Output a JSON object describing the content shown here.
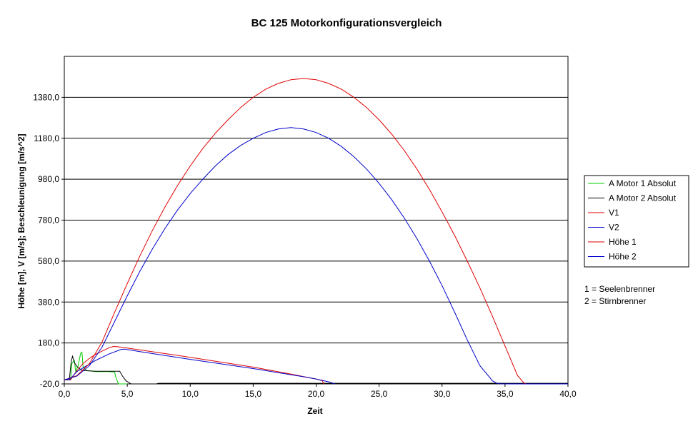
{
  "chart_data": {
    "type": "line",
    "title": "BC 125 Motorkonfigurationsvergleich",
    "xlabel": "Zeit",
    "ylabel": "Höhe [m], V [m/s]; Beschleunigung [m/s^2]",
    "xlim": [
      0,
      40
    ],
    "ylim": [
      -20,
      1580
    ],
    "x_ticks": [
      "0,0",
      "5,0",
      "10,0",
      "15,0",
      "20,0",
      "25,0",
      "30,0",
      "35,0",
      "40,0"
    ],
    "x_tick_values": [
      0,
      5,
      10,
      15,
      20,
      25,
      30,
      35,
      40
    ],
    "y_ticks": [
      "-20,0",
      "180,0",
      "380,0",
      "580,0",
      "780,0",
      "980,0",
      "1180,0",
      "1380,0"
    ],
    "y_tick_values": [
      -20,
      180,
      380,
      580,
      780,
      980,
      1180,
      1380
    ],
    "grid": "horizontal",
    "legend_position": "right",
    "series": [
      {
        "name": "A Motor 1 Absolut",
        "color": "#00cc00",
        "points": [
          [
            0,
            0
          ],
          [
            0.5,
            0
          ],
          [
            0.6,
            80
          ],
          [
            0.8,
            95
          ],
          [
            0.9,
            40
          ],
          [
            1.1,
            70
          ],
          [
            1.3,
            130
          ],
          [
            1.4,
            135
          ],
          [
            1.5,
            60
          ],
          [
            1.8,
            45
          ],
          [
            2.5,
            40
          ],
          [
            3.5,
            40
          ],
          [
            4.0,
            38
          ],
          [
            4.1,
            10
          ],
          [
            4.3,
            -20
          ],
          [
            5,
            -20
          ]
        ]
      },
      {
        "name": "A Motor 2 Absolut",
        "color": "#000000",
        "points": [
          [
            0,
            0
          ],
          [
            0.4,
            0
          ],
          [
            0.55,
            90
          ],
          [
            0.65,
            115
          ],
          [
            0.8,
            85
          ],
          [
            1.0,
            65
          ],
          [
            1.3,
            50
          ],
          [
            1.6,
            45
          ],
          [
            2.5,
            42
          ],
          [
            3.5,
            42
          ],
          [
            4.4,
            42
          ],
          [
            4.6,
            20
          ],
          [
            4.9,
            -5
          ],
          [
            5.3,
            -20
          ],
          [
            6,
            -20
          ],
          [
            7.3,
            -20
          ],
          [
            7.5,
            -17
          ],
          [
            40,
            -17
          ]
        ]
      },
      {
        "name": "V1",
        "color": "#e00000",
        "points": [
          [
            0,
            0
          ],
          [
            0.5,
            0
          ],
          [
            1.0,
            45
          ],
          [
            1.5,
            80
          ],
          [
            2.0,
            105
          ],
          [
            2.5,
            125
          ],
          [
            3.0,
            140
          ],
          [
            3.5,
            155
          ],
          [
            3.9,
            163
          ],
          [
            4.2,
            162
          ],
          [
            5,
            155
          ],
          [
            10,
            110
          ],
          [
            15,
            62
          ],
          [
            18,
            28
          ],
          [
            19,
            16
          ],
          [
            20,
            4
          ],
          [
            20.5,
            -5
          ],
          [
            20.6,
            -20
          ]
        ]
      },
      {
        "name": "V2",
        "color": "#0000cc",
        "points": [
          [
            0,
            0
          ],
          [
            0.4,
            0
          ],
          [
            1.0,
            40
          ],
          [
            1.8,
            70
          ],
          [
            2.5,
            95
          ],
          [
            3.5,
            125
          ],
          [
            4.5,
            148
          ],
          [
            4.8,
            150
          ],
          [
            6,
            138
          ],
          [
            10,
            100
          ],
          [
            15,
            55
          ],
          [
            18,
            25
          ],
          [
            19,
            15
          ],
          [
            20,
            4
          ],
          [
            20.5,
            -3
          ],
          [
            21,
            -10
          ],
          [
            21.5,
            -20
          ]
        ]
      },
      {
        "name": "Höhe 1",
        "color": "#e00000",
        "points": [
          [
            0,
            0
          ],
          [
            1,
            20
          ],
          [
            2,
            80
          ],
          [
            3,
            185
          ],
          [
            4,
            330
          ],
          [
            5,
            470
          ],
          [
            6,
            605
          ],
          [
            7,
            730
          ],
          [
            8,
            845
          ],
          [
            9,
            950
          ],
          [
            10,
            1045
          ],
          [
            11,
            1130
          ],
          [
            12,
            1205
          ],
          [
            13,
            1270
          ],
          [
            14,
            1330
          ],
          [
            15,
            1380
          ],
          [
            16,
            1420
          ],
          [
            17,
            1448
          ],
          [
            18,
            1466
          ],
          [
            19,
            1472
          ],
          [
            20,
            1466
          ],
          [
            21,
            1448
          ],
          [
            22,
            1420
          ],
          [
            23,
            1380
          ],
          [
            24,
            1330
          ],
          [
            25,
            1270
          ],
          [
            26,
            1200
          ],
          [
            27,
            1120
          ],
          [
            28,
            1030
          ],
          [
            29,
            930
          ],
          [
            30,
            820
          ],
          [
            31,
            705
          ],
          [
            32,
            580
          ],
          [
            33,
            450
          ],
          [
            34,
            310
          ],
          [
            35,
            165
          ],
          [
            36,
            20
          ],
          [
            36.5,
            -15
          ],
          [
            36.7,
            -20
          ]
        ]
      },
      {
        "name": "Höhe 2",
        "color": "#0000cc",
        "points": [
          [
            0,
            0
          ],
          [
            1,
            18
          ],
          [
            2,
            70
          ],
          [
            3,
            160
          ],
          [
            4,
            285
          ],
          [
            5,
            410
          ],
          [
            6,
            530
          ],
          [
            7,
            640
          ],
          [
            8,
            740
          ],
          [
            9,
            830
          ],
          [
            10,
            910
          ],
          [
            11,
            980
          ],
          [
            12,
            1045
          ],
          [
            13,
            1100
          ],
          [
            14,
            1145
          ],
          [
            15,
            1180
          ],
          [
            16,
            1208
          ],
          [
            17,
            1225
          ],
          [
            18,
            1232
          ],
          [
            19,
            1225
          ],
          [
            20,
            1208
          ],
          [
            21,
            1180
          ],
          [
            22,
            1140
          ],
          [
            23,
            1090
          ],
          [
            24,
            1030
          ],
          [
            25,
            960
          ],
          [
            26,
            880
          ],
          [
            27,
            790
          ],
          [
            28,
            690
          ],
          [
            29,
            580
          ],
          [
            30,
            460
          ],
          [
            31,
            330
          ],
          [
            32,
            195
          ],
          [
            33,
            70
          ],
          [
            34,
            -5
          ],
          [
            34.3,
            -15
          ],
          [
            34.6,
            -20
          ],
          [
            40,
            -20
          ]
        ]
      }
    ],
    "annotations": [
      "1 = Seelenbrenner",
      "2 = Stirnbrenner"
    ]
  }
}
